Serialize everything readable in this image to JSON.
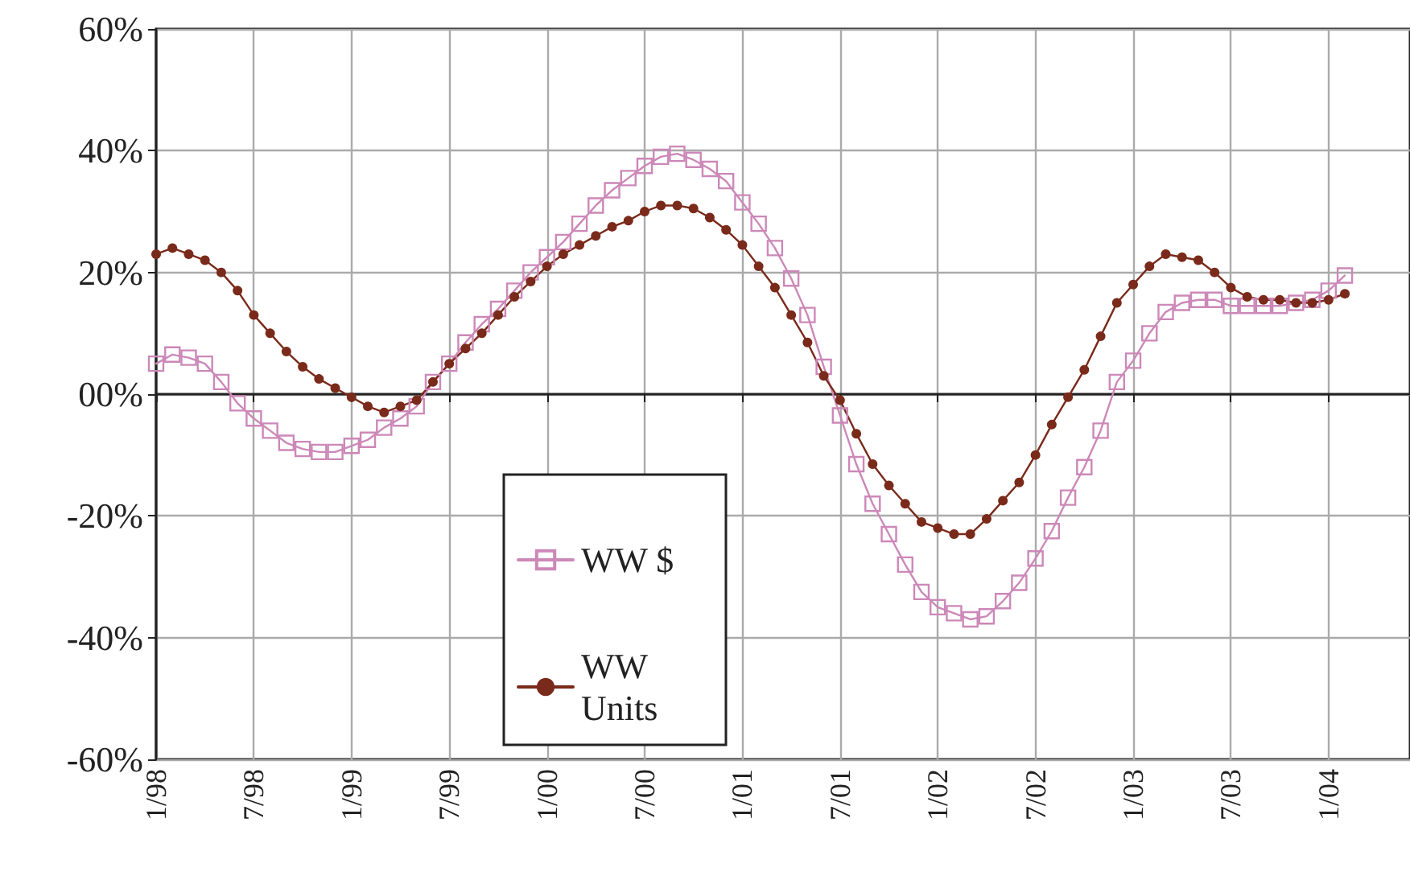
{
  "chart_data": {
    "type": "line",
    "categories": [
      "1/98",
      null,
      null,
      null,
      null,
      null,
      "7/98",
      null,
      null,
      null,
      null,
      null,
      "1/99",
      null,
      null,
      null,
      null,
      null,
      "7/99",
      null,
      null,
      null,
      null,
      null,
      "1/00",
      null,
      null,
      null,
      null,
      null,
      "7/00",
      null,
      null,
      null,
      null,
      null,
      "1/01",
      null,
      null,
      null,
      null,
      null,
      "7/01",
      null,
      null,
      null,
      null,
      null,
      "1/02",
      null,
      null,
      null,
      null,
      null,
      "7/02",
      null,
      null,
      null,
      null,
      null,
      "1/03",
      null,
      null,
      null,
      null,
      null,
      "7/03",
      null,
      null,
      null,
      null,
      null,
      "1/04",
      null,
      null,
      null,
      null,
      null
    ],
    "series": [
      {
        "name": "WW $",
        "color": "#cc88b8",
        "marker": "square",
        "values": [
          5,
          6.5,
          6,
          5,
          2,
          -1.5,
          -4,
          -6,
          -8,
          -9,
          -9.5,
          -9.5,
          -8.5,
          -7.5,
          -5.5,
          -4,
          -2,
          2,
          5,
          8.5,
          11.5,
          14,
          17,
          20,
          22.5,
          25,
          28,
          31,
          33.5,
          35.5,
          37.5,
          39,
          39.5,
          38.5,
          37,
          35,
          31.5,
          28,
          24,
          19,
          13,
          4.5,
          -3.5,
          -11.5,
          -18,
          -23,
          -28,
          -32.5,
          -35,
          -36,
          -37,
          -36.5,
          -34,
          -31,
          -27,
          -22.5,
          -17,
          -12,
          -6,
          2,
          5.5,
          10,
          13.5,
          15,
          15.5,
          15.5,
          14.5,
          14.5,
          14.5,
          14.5,
          15,
          15.5,
          17,
          19.5,
          null,
          null,
          null,
          null
        ]
      },
      {
        "name": "WW Units",
        "color": "#7a2a1a",
        "marker": "circle",
        "values": [
          23,
          24,
          23,
          22,
          20,
          17,
          13,
          10,
          7,
          4.5,
          2.5,
          1,
          -0.5,
          -2,
          -3,
          -2,
          -1,
          2,
          5,
          7.5,
          10,
          13,
          16,
          18.5,
          21,
          23,
          24.5,
          26,
          27.5,
          28.5,
          30,
          31,
          31,
          30.5,
          29,
          27,
          24.5,
          21,
          17.5,
          13,
          8.5,
          3,
          -1,
          -6.5,
          -11.5,
          -15,
          -18,
          -21,
          -22,
          -23,
          -23,
          -20.5,
          -17.5,
          -14.5,
          -10,
          -5,
          -0.5,
          4,
          9.5,
          15,
          18,
          21,
          23,
          22.5,
          22,
          20,
          17.5,
          16,
          15.5,
          15.5,
          15,
          15,
          15.5,
          16.5,
          null,
          null,
          null,
          null
        ]
      }
    ],
    "ylim": [
      -60,
      60
    ],
    "yticks": [
      {
        "value": -60,
        "label": "-60%"
      },
      {
        "value": -40,
        "label": "-40%"
      },
      {
        "value": -20,
        "label": "-20%"
      },
      {
        "value": 0,
        "label": "00%"
      },
      {
        "value": 20,
        "label": "20%"
      },
      {
        "value": 40,
        "label": "40%"
      },
      {
        "value": 60,
        "label": "60%"
      }
    ],
    "grid": true,
    "legend": "bottom"
  }
}
